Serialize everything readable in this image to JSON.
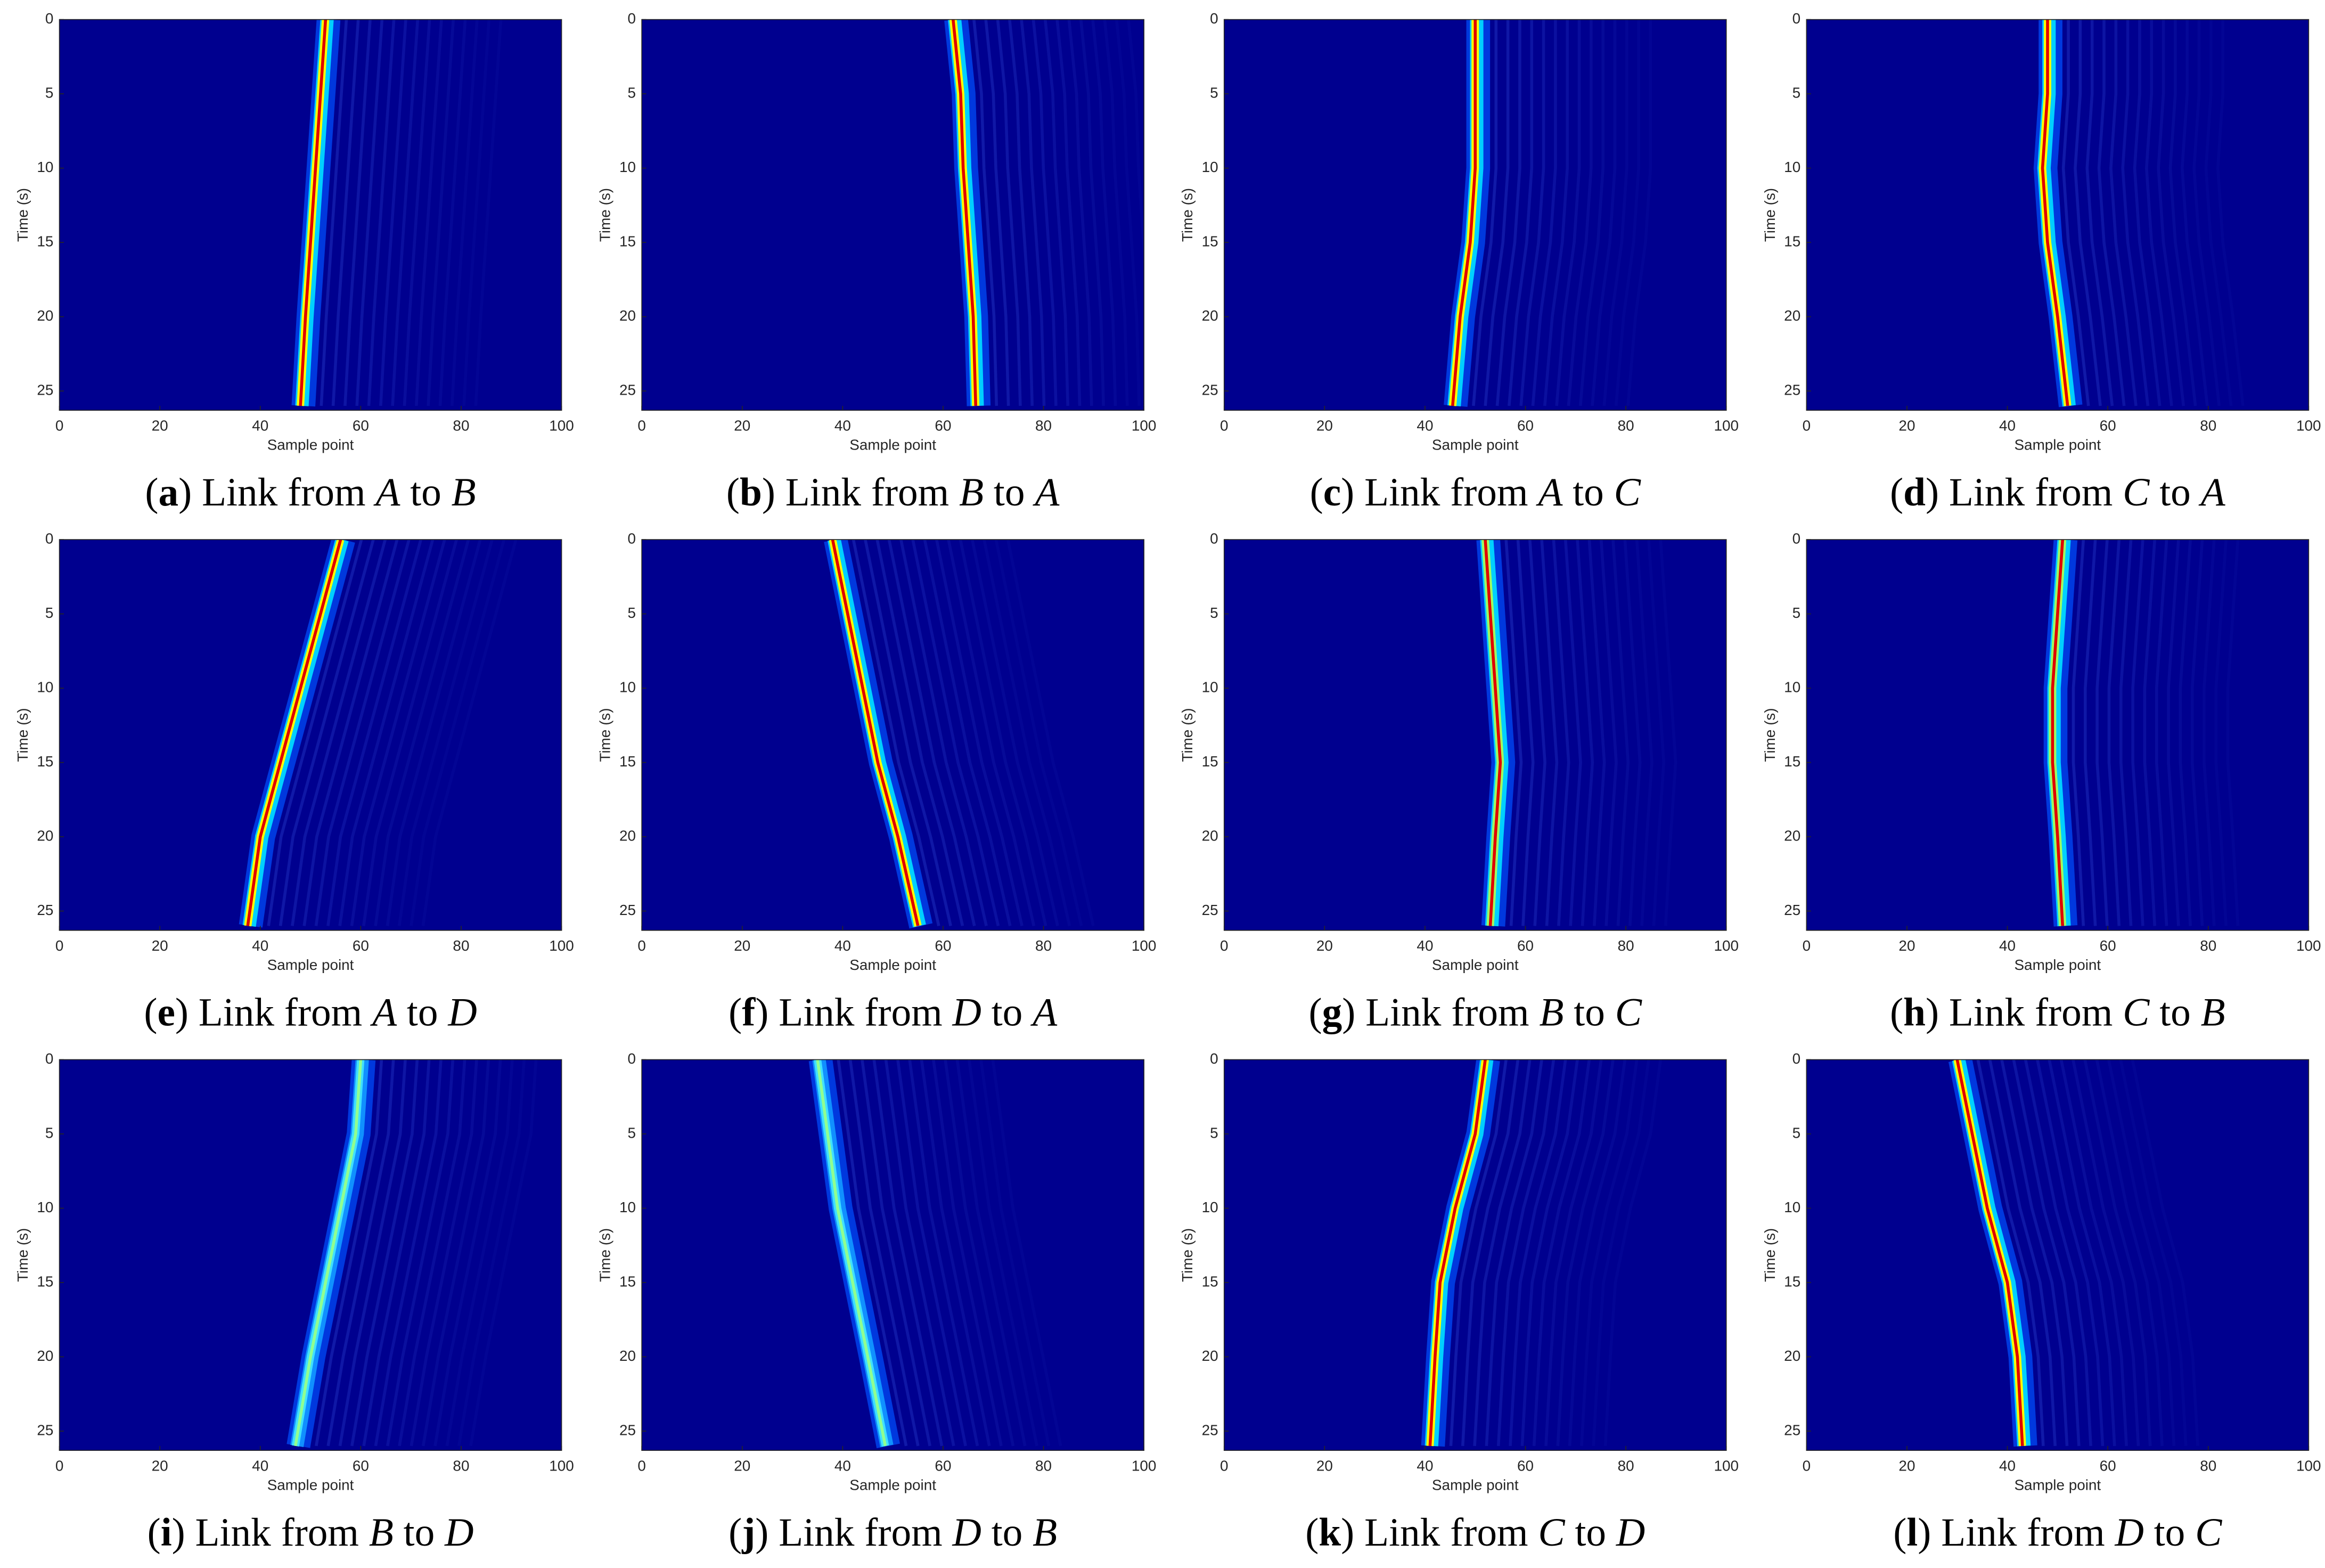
{
  "chart_data": [
    {
      "type": "heatmap",
      "caption_parts": [
        "(",
        "a",
        ") Link from ",
        "A",
        " to ",
        "B"
      ],
      "xlabel": "Sample point",
      "ylabel": "Time (s)",
      "x": [
        0,
        5,
        10,
        15,
        20,
        26
      ],
      "values": [
        53,
        52,
        51,
        50,
        49,
        48
      ],
      "xlim": [
        0,
        100
      ],
      "ylim": [
        0,
        26.3
      ],
      "y_reversed": true,
      "xticks": [
        0,
        20,
        40,
        60,
        80,
        100
      ],
      "yticks": [
        0,
        5,
        10,
        15,
        20,
        25
      ],
      "colors": [
        "#00008f",
        "#00d0ff",
        "#ffff00",
        "#e00000"
      ]
    },
    {
      "type": "heatmap",
      "caption_parts": [
        "(",
        "b",
        ") Link from ",
        "B",
        " to ",
        "A"
      ],
      "xlabel": "Sample point",
      "ylabel": "Time (s)",
      "x": [
        0,
        5,
        10,
        15,
        20,
        26
      ],
      "values": [
        62,
        63.5,
        64,
        65,
        66,
        66.5
      ],
      "xlim": [
        0,
        100
      ],
      "ylim": [
        0,
        26.3
      ],
      "y_reversed": true,
      "xticks": [
        0,
        20,
        40,
        60,
        80,
        100
      ],
      "yticks": [
        0,
        5,
        10,
        15,
        20,
        25
      ],
      "colors": [
        "#00008f",
        "#00d0ff",
        "#ffff00",
        "#e00000"
      ]
    },
    {
      "type": "heatmap",
      "caption_parts": [
        "(",
        "c",
        ") Link from ",
        "A",
        " to ",
        "C"
      ],
      "xlabel": "Sample point",
      "ylabel": "Time (s)",
      "x": [
        0,
        5,
        10,
        15,
        20,
        26
      ],
      "values": [
        50,
        50,
        50,
        49,
        47,
        45.5
      ],
      "xlim": [
        0,
        100
      ],
      "ylim": [
        0,
        26.3
      ],
      "y_reversed": true,
      "xticks": [
        0,
        20,
        40,
        60,
        80,
        100
      ],
      "yticks": [
        0,
        5,
        10,
        15,
        20,
        25
      ],
      "colors": [
        "#00008f",
        "#00d0ff",
        "#ffff00",
        "#e00000"
      ]
    },
    {
      "type": "heatmap",
      "caption_parts": [
        "(",
        "d",
        ") Link from ",
        "C",
        " to ",
        "A"
      ],
      "xlabel": "Sample point",
      "ylabel": "Time (s)",
      "x": [
        0,
        5,
        10,
        15,
        20,
        26
      ],
      "values": [
        48,
        48,
        47,
        48,
        50,
        52
      ],
      "xlim": [
        0,
        100
      ],
      "ylim": [
        0,
        26.3
      ],
      "y_reversed": true,
      "xticks": [
        0,
        20,
        40,
        60,
        80,
        100
      ],
      "yticks": [
        0,
        5,
        10,
        15,
        20,
        25
      ],
      "colors": [
        "#00008f",
        "#00d0ff",
        "#ffff00",
        "#e00000"
      ]
    },
    {
      "type": "heatmap",
      "caption_parts": [
        "(",
        "e",
        ") Link from ",
        "A",
        " to ",
        "D"
      ],
      "xlabel": "Sample point",
      "ylabel": "Time (s)",
      "x": [
        0,
        5,
        10,
        15,
        20,
        26
      ],
      "values": [
        56,
        52,
        48,
        44,
        40,
        37.5
      ],
      "xlim": [
        0,
        100
      ],
      "ylim": [
        0,
        26.3
      ],
      "y_reversed": true,
      "xticks": [
        0,
        20,
        40,
        60,
        80,
        100
      ],
      "yticks": [
        0,
        5,
        10,
        15,
        20,
        25
      ],
      "colors": [
        "#00008f",
        "#00d0ff",
        "#ffff00",
        "#e00000"
      ]
    },
    {
      "type": "heatmap",
      "caption_parts": [
        "(",
        "f",
        ") Link from ",
        "D",
        " to ",
        "A"
      ],
      "xlabel": "Sample point",
      "ylabel": "Time (s)",
      "x": [
        0,
        5,
        10,
        15,
        20,
        26
      ],
      "values": [
        38,
        41,
        44,
        47,
        51,
        55
      ],
      "xlim": [
        0,
        100
      ],
      "ylim": [
        0,
        26.3
      ],
      "y_reversed": true,
      "xticks": [
        0,
        20,
        40,
        60,
        80,
        100
      ],
      "yticks": [
        0,
        5,
        10,
        15,
        20,
        25
      ],
      "colors": [
        "#00008f",
        "#00d0ff",
        "#ffff00",
        "#e00000"
      ]
    },
    {
      "type": "heatmap",
      "caption_parts": [
        "(",
        "g",
        ") Link from ",
        "B",
        " to ",
        "C"
      ],
      "xlabel": "Sample point",
      "ylabel": "Time (s)",
      "x": [
        0,
        5,
        10,
        15,
        20,
        26
      ],
      "values": [
        52,
        53,
        54,
        55,
        54,
        53
      ],
      "xlim": [
        0,
        100
      ],
      "ylim": [
        0,
        26.3
      ],
      "y_reversed": true,
      "xticks": [
        0,
        20,
        40,
        60,
        80,
        100
      ],
      "yticks": [
        0,
        5,
        10,
        15,
        20,
        25
      ],
      "colors": [
        "#00008f",
        "#00d0ff",
        "#a0ff60",
        "#e00000"
      ]
    },
    {
      "type": "heatmap",
      "caption_parts": [
        "(",
        "h",
        ") Link from ",
        "C",
        " to ",
        "B"
      ],
      "xlabel": "Sample point",
      "ylabel": "Time (s)",
      "x": [
        0,
        5,
        10,
        15,
        20,
        26
      ],
      "values": [
        51,
        50,
        49,
        49,
        50,
        51
      ],
      "xlim": [
        0,
        100
      ],
      "ylim": [
        0,
        26.3
      ],
      "y_reversed": true,
      "xticks": [
        0,
        20,
        40,
        60,
        80,
        100
      ],
      "yticks": [
        0,
        5,
        10,
        15,
        20,
        25
      ],
      "colors": [
        "#00008f",
        "#00d0ff",
        "#a0ff60",
        "#e00000"
      ]
    },
    {
      "type": "heatmap",
      "caption_parts": [
        "(",
        "i",
        ") Link from ",
        "B",
        " to ",
        "D"
      ],
      "xlabel": "Sample point",
      "ylabel": "Time (s)",
      "x": [
        0,
        5,
        10,
        15,
        20,
        26
      ],
      "values": [
        60,
        59,
        56,
        53,
        50,
        47
      ],
      "xlim": [
        0,
        100
      ],
      "ylim": [
        0,
        26.3
      ],
      "y_reversed": true,
      "xticks": [
        0,
        20,
        40,
        60,
        80,
        100
      ],
      "yticks": [
        0,
        5,
        10,
        15,
        20,
        25
      ],
      "colors": [
        "#00008f",
        "#1090ff",
        "#40e0ff",
        "#90ff90"
      ]
    },
    {
      "type": "heatmap",
      "caption_parts": [
        "(",
        "j",
        ") Link from ",
        "D",
        " to ",
        "B"
      ],
      "xlabel": "Sample point",
      "ylabel": "Time (s)",
      "x": [
        0,
        5,
        10,
        15,
        20,
        26
      ],
      "values": [
        35,
        37,
        39,
        42,
        45,
        48.5
      ],
      "xlim": [
        0,
        100
      ],
      "ylim": [
        0,
        26.3
      ],
      "y_reversed": true,
      "xticks": [
        0,
        20,
        40,
        60,
        80,
        100
      ],
      "yticks": [
        0,
        5,
        10,
        15,
        20,
        25
      ],
      "colors": [
        "#00008f",
        "#1090ff",
        "#40e0ff",
        "#90ff90"
      ]
    },
    {
      "type": "heatmap",
      "caption_parts": [
        "(",
        "k",
        ") Link from ",
        "C",
        " to ",
        "D"
      ],
      "xlabel": "Sample point",
      "ylabel": "Time (s)",
      "x": [
        0,
        5,
        10,
        15,
        20,
        26
      ],
      "values": [
        52,
        50,
        46,
        43,
        42,
        41
      ],
      "xlim": [
        0,
        100
      ],
      "ylim": [
        0,
        26.3
      ],
      "y_reversed": true,
      "xticks": [
        0,
        20,
        40,
        60,
        80,
        100
      ],
      "yticks": [
        0,
        5,
        10,
        15,
        20,
        25
      ],
      "colors": [
        "#00008f",
        "#00d0ff",
        "#ffff00",
        "#e00000"
      ]
    },
    {
      "type": "heatmap",
      "caption_parts": [
        "(",
        "l",
        ") Link from ",
        "D",
        " to ",
        "C"
      ],
      "xlabel": "Sample point",
      "ylabel": "Time (s)",
      "x": [
        0,
        5,
        10,
        15,
        20,
        26
      ],
      "values": [
        30,
        33,
        36,
        40,
        42,
        43
      ],
      "xlim": [
        0,
        100
      ],
      "ylim": [
        0,
        26.3
      ],
      "y_reversed": true,
      "xticks": [
        0,
        20,
        40,
        60,
        80,
        100
      ],
      "yticks": [
        0,
        5,
        10,
        15,
        20,
        25
      ],
      "colors": [
        "#00008f",
        "#00d0ff",
        "#ffff00",
        "#e00000"
      ]
    }
  ]
}
